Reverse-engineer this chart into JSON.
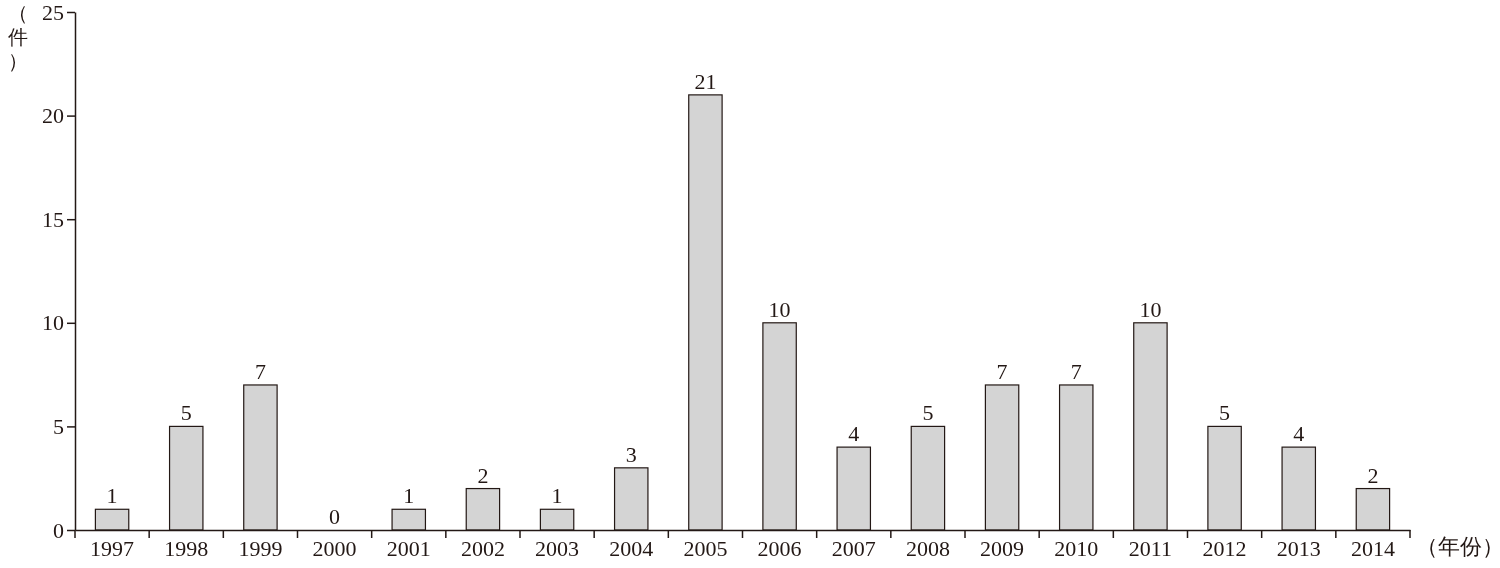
{
  "chart_data": {
    "type": "bar",
    "xlabel": "（年份）",
    "ylabel": "（件）",
    "categories": [
      "1997",
      "1998",
      "1999",
      "2000",
      "2001",
      "2002",
      "2003",
      "2004",
      "2005",
      "2006",
      "2007",
      "2008",
      "2009",
      "2010",
      "2011",
      "2012",
      "2013",
      "2014"
    ],
    "values": [
      1,
      5,
      7,
      0,
      1,
      2,
      1,
      3,
      21,
      10,
      4,
      5,
      7,
      7,
      10,
      5,
      4,
      2
    ],
    "color": "#d4d4d4",
    "ylim": [
      0,
      25
    ],
    "yticks": [
      0,
      5,
      10,
      15,
      20,
      25
    ],
    "data_labels": true,
    "grid": false
  }
}
